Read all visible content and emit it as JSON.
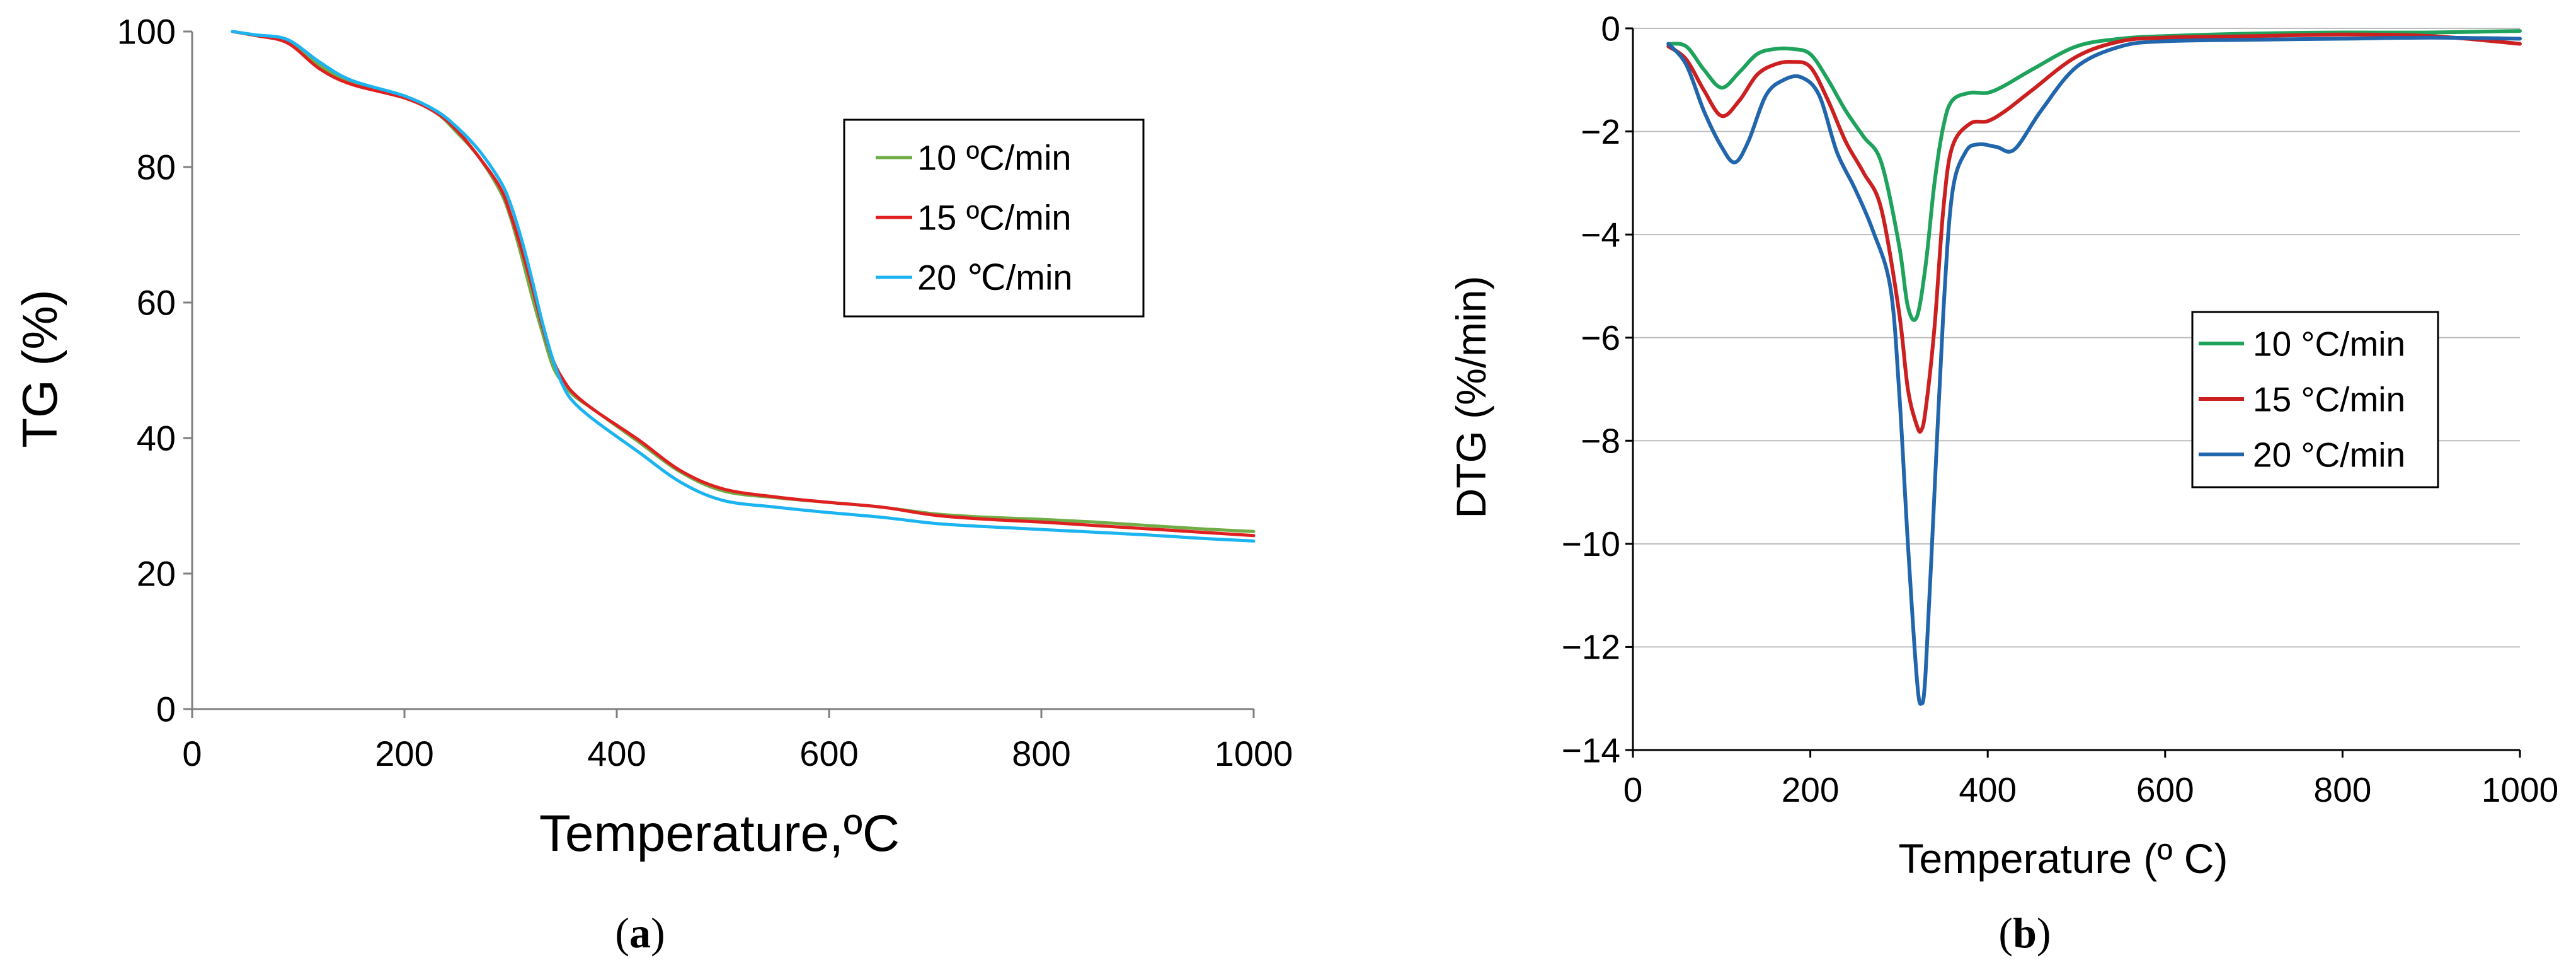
{
  "chart_data": [
    {
      "type": "line",
      "panel_label": "a",
      "title": "",
      "xlabel": "Temperature,ºC",
      "ylabel": "TG (%)",
      "xlim": [
        0,
        1000
      ],
      "ylim": [
        0,
        100
      ],
      "xticks": [
        "0",
        "200",
        "400",
        "600",
        "800",
        "1000"
      ],
      "yticks": [
        "0",
        "20",
        "40",
        "60",
        "80",
        "100"
      ],
      "grid": false,
      "legend_position": "upper-right",
      "series": [
        {
          "name": "10 ºC/min",
          "color": "#70AD47",
          "x": [
            38,
            60,
            90,
            120,
            150,
            200,
            230,
            250,
            270,
            290,
            300,
            310,
            320,
            330,
            340,
            350,
            360,
            380,
            420,
            460,
            500,
            550,
            600,
            650,
            700,
            750,
            800,
            850,
            900,
            950,
            1000
          ],
          "y": [
            100,
            99.4,
            98.5,
            95,
            92.5,
            90.3,
            88,
            85,
            81.5,
            76.5,
            72.5,
            67,
            61,
            55.5,
            50.5,
            48,
            46.2,
            44,
            39.5,
            35,
            32.2,
            31.2,
            30.5,
            29.8,
            28.8,
            28.3,
            28,
            27.6,
            27.1,
            26.6,
            26.2
          ]
        },
        {
          "name": "15 ºC/min",
          "color": "#E02020",
          "x": [
            38,
            60,
            90,
            120,
            150,
            200,
            230,
            250,
            270,
            290,
            300,
            310,
            320,
            330,
            340,
            350,
            360,
            380,
            420,
            460,
            500,
            550,
            600,
            650,
            700,
            750,
            800,
            850,
            900,
            950,
            1000
          ],
          "y": [
            100,
            99.4,
            98.3,
            94.5,
            92.2,
            90.2,
            88,
            85.3,
            81.5,
            77,
            73,
            68,
            62.5,
            56.5,
            51.5,
            48.5,
            46.5,
            44,
            39.8,
            35.2,
            32.5,
            31.3,
            30.5,
            29.8,
            28.6,
            28,
            27.6,
            27.1,
            26.6,
            26.1,
            25.6
          ]
        },
        {
          "name": "20 ℃/min",
          "color": "#1CB4F0",
          "x": [
            38,
            60,
            90,
            120,
            150,
            200,
            230,
            250,
            270,
            290,
            300,
            310,
            320,
            330,
            340,
            350,
            360,
            380,
            420,
            460,
            500,
            550,
            600,
            650,
            700,
            750,
            800,
            850,
            900,
            950,
            1000
          ],
          "y": [
            100,
            99.5,
            98.8,
            95.5,
            92.8,
            90.5,
            88.3,
            85.8,
            82.5,
            78,
            74.5,
            69.5,
            63.5,
            57,
            51.5,
            47.5,
            45.2,
            42.5,
            38,
            33.5,
            30.8,
            29.8,
            29,
            28.3,
            27.4,
            26.9,
            26.5,
            26.1,
            25.7,
            25.2,
            24.8
          ]
        }
      ]
    },
    {
      "type": "line",
      "panel_label": "b",
      "title": "",
      "xlabel": "Temperature  (º C)",
      "ylabel": "DTG (%/min)",
      "xlim": [
        0,
        1000
      ],
      "ylim": [
        -14,
        0
      ],
      "xticks": [
        "0",
        "200",
        "400",
        "600",
        "800",
        "1000"
      ],
      "yticks": [
        "0",
        "−2",
        "−4",
        "−6",
        "−8",
        "−10",
        "−12",
        "−14"
      ],
      "grid": true,
      "legend_position": "right-center",
      "series": [
        {
          "name": "10 °C/min",
          "color": "#1FA35C",
          "x": [
            40,
            60,
            80,
            100,
            120,
            140,
            160,
            180,
            200,
            220,
            240,
            260,
            280,
            300,
            310,
            320,
            330,
            340,
            350,
            360,
            380,
            400,
            420,
            450,
            500,
            550,
            600,
            700,
            800,
            900,
            1000
          ],
          "y": [
            -0.3,
            -0.35,
            -0.8,
            -1.15,
            -0.85,
            -0.5,
            -0.4,
            -0.4,
            -0.5,
            -1.0,
            -1.6,
            -2.1,
            -2.6,
            -4.2,
            -5.4,
            -5.6,
            -4.6,
            -3.0,
            -1.9,
            -1.4,
            -1.25,
            -1.25,
            -1.1,
            -0.8,
            -0.35,
            -0.2,
            -0.15,
            -0.1,
            -0.08,
            -0.08,
            -0.05
          ]
        },
        {
          "name": "15 °C/min",
          "color": "#CC2020",
          "x": [
            40,
            60,
            80,
            100,
            120,
            140,
            160,
            180,
            200,
            220,
            240,
            260,
            280,
            300,
            310,
            320,
            325,
            330,
            340,
            350,
            360,
            380,
            400,
            420,
            450,
            500,
            550,
            600,
            700,
            800,
            900,
            1000
          ],
          "y": [
            -0.35,
            -0.6,
            -1.2,
            -1.7,
            -1.4,
            -0.9,
            -0.7,
            -0.65,
            -0.75,
            -1.4,
            -2.2,
            -2.8,
            -3.5,
            -5.5,
            -7.0,
            -7.7,
            -7.8,
            -7.4,
            -5.8,
            -3.5,
            -2.3,
            -1.85,
            -1.8,
            -1.6,
            -1.2,
            -0.55,
            -0.25,
            -0.18,
            -0.15,
            -0.12,
            -0.15,
            -0.3
          ]
        },
        {
          "name": "20 °C/min",
          "color": "#2166AC",
          "x": [
            40,
            60,
            80,
            100,
            115,
            130,
            150,
            170,
            190,
            210,
            230,
            250,
            270,
            290,
            300,
            310,
            320,
            325,
            330,
            340,
            350,
            360,
            375,
            390,
            410,
            430,
            460,
            500,
            550,
            600,
            700,
            800,
            900,
            1000
          ],
          "y": [
            -0.3,
            -0.7,
            -1.6,
            -2.3,
            -2.6,
            -2.2,
            -1.3,
            -1.0,
            -0.95,
            -1.3,
            -2.4,
            -3.1,
            -3.9,
            -5.0,
            -7.0,
            -10.0,
            -12.6,
            -13.1,
            -12.5,
            -9.0,
            -5.5,
            -3.2,
            -2.4,
            -2.25,
            -2.3,
            -2.35,
            -1.6,
            -0.75,
            -0.35,
            -0.25,
            -0.22,
            -0.2,
            -0.18,
            -0.2
          ]
        }
      ]
    }
  ]
}
